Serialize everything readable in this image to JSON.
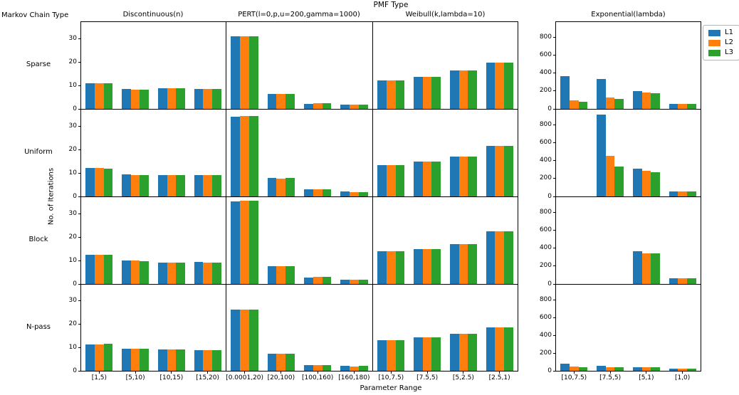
{
  "chart_data": {
    "type": "bar",
    "title": "PMF Type",
    "row_axis_label": "Markov Chain Type",
    "xlabel": "Parameter Range",
    "ylabel": "No. of Iterations",
    "grid": false,
    "legend": {
      "position": "upper-right-outside",
      "entries": [
        {
          "label": "L1",
          "color": "#1f77b4"
        },
        {
          "label": "L2",
          "color": "#ff7f0e"
        },
        {
          "label": "L3",
          "color": "#2ca02c"
        }
      ]
    },
    "columns": [
      {
        "title": "Discontinuous(n)",
        "categories": [
          "[1,5)",
          "[5,10)",
          "[10,15)",
          "[15,20)"
        ],
        "ylim": [
          0,
          37
        ],
        "yticks": [
          0,
          10,
          20,
          30
        ]
      },
      {
        "title": "PERT(l=0,p,u=200,gamma=1000)",
        "categories": [
          "[0.0001,20)",
          "[20,100)",
          "[100,160)",
          "[160,180)"
        ],
        "ylim": [
          0,
          37
        ],
        "yticks": [
          0,
          10,
          20,
          30
        ]
      },
      {
        "title": "Weibull(k,lambda=10)",
        "categories": [
          "[10,7.5)",
          "[7.5,5)",
          "[5,2.5)",
          "[2.5,1)"
        ],
        "ylim": [
          0,
          37
        ],
        "yticks": [
          0,
          10,
          20,
          30
        ]
      },
      {
        "title": "Exponential(lambda)",
        "categories": [
          "[10,7.5)",
          "[7.5,5)",
          "[5,1)",
          "[1,0)"
        ],
        "ylim": [
          0,
          975
        ],
        "yticks": [
          0,
          200,
          400,
          600,
          800
        ]
      }
    ],
    "rows": [
      {
        "label": "Sparse",
        "cells": [
          {
            "L1": [
              10.9,
              8.4,
              8.9,
              8.6
            ],
            "L2": [
              10.9,
              8.3,
              8.8,
              8.6
            ],
            "L3": [
              11.0,
              8.3,
              8.8,
              8.5
            ]
          },
          {
            "L1": [
              30.8,
              6.5,
              2.2,
              1.8
            ],
            "L2": [
              30.8,
              6.4,
              2.3,
              1.7
            ],
            "L3": [
              30.9,
              6.5,
              2.3,
              1.8
            ]
          },
          {
            "L1": [
              12.1,
              13.6,
              16.4,
              19.6
            ],
            "L2": [
              12.2,
              13.6,
              16.4,
              19.6
            ],
            "L3": [
              12.1,
              13.7,
              16.3,
              19.7
            ]
          },
          {
            "L1": [
              370,
              335,
              200,
              60
            ],
            "L2": [
              95,
              130,
              185,
              58
            ],
            "L3": [
              82,
              112,
              178,
              60
            ]
          }
        ]
      },
      {
        "label": "Uniform",
        "cells": [
          {
            "L1": [
              12.0,
              9.3,
              9.1,
              9.2
            ],
            "L2": [
              12.0,
              9.1,
              9.0,
              9.0
            ],
            "L3": [
              11.9,
              9.1,
              9.0,
              9.0
            ]
          },
          {
            "L1": [
              33.9,
              7.8,
              3.0,
              2.0
            ],
            "L2": [
              34.2,
              7.7,
              2.9,
              1.9
            ],
            "L3": [
              34.2,
              7.8,
              3.0,
              1.9
            ]
          },
          {
            "L1": [
              13.5,
              14.8,
              17.0,
              21.4
            ],
            "L2": [
              13.5,
              14.9,
              17.0,
              21.4
            ],
            "L3": [
              13.5,
              14.8,
              17.1,
              21.5
            ]
          },
          {
            "L1": [
              0,
              920,
              310,
              60
            ],
            "L2": [
              0,
              457,
              285,
              58
            ],
            "L3": [
              0,
              335,
              275,
              60
            ]
          }
        ]
      },
      {
        "label": "Block",
        "cells": [
          {
            "L1": [
              12.5,
              10.0,
              9.2,
              9.3
            ],
            "L2": [
              12.5,
              10.0,
              9.1,
              9.2
            ],
            "L3": [
              12.4,
              9.8,
              9.1,
              9.1
            ]
          },
          {
            "L1": [
              35.2,
              7.5,
              2.8,
              1.8
            ],
            "L2": [
              35.4,
              7.5,
              2.9,
              1.7
            ],
            "L3": [
              35.5,
              7.5,
              2.9,
              1.8
            ]
          },
          {
            "L1": [
              14.0,
              15.0,
              17.0,
              22.3
            ],
            "L2": [
              14.0,
              15.0,
              17.1,
              22.4
            ],
            "L3": [
              14.0,
              15.0,
              17.0,
              22.4
            ]
          },
          {
            "L1": [
              0,
              0,
              365,
              65
            ],
            "L2": [
              0,
              0,
              345,
              63
            ],
            "L3": [
              0,
              0,
              340,
              64
            ]
          }
        ]
      },
      {
        "label": "N-pass",
        "cells": [
          {
            "L1": [
              11.4,
              9.6,
              9.2,
              9.0
            ],
            "L2": [
              11.4,
              9.6,
              9.1,
              9.0
            ],
            "L3": [
              11.5,
              9.5,
              9.1,
              8.9
            ]
          },
          {
            "L1": [
              26.2,
              7.3,
              2.5,
              2.0
            ],
            "L2": [
              26.3,
              7.2,
              2.4,
              1.9
            ],
            "L3": [
              26.4,
              7.3,
              2.5,
              2.0
            ]
          },
          {
            "L1": [
              13.2,
              14.3,
              15.8,
              18.6
            ],
            "L2": [
              13.2,
              14.3,
              15.8,
              18.7
            ],
            "L3": [
              13.3,
              14.4,
              15.9,
              18.7
            ]
          },
          {
            "L1": [
              80,
              55,
              42,
              28
            ],
            "L2": [
              45,
              42,
              38,
              25
            ],
            "L3": [
              40,
              40,
              40,
              27
            ]
          }
        ]
      }
    ]
  }
}
